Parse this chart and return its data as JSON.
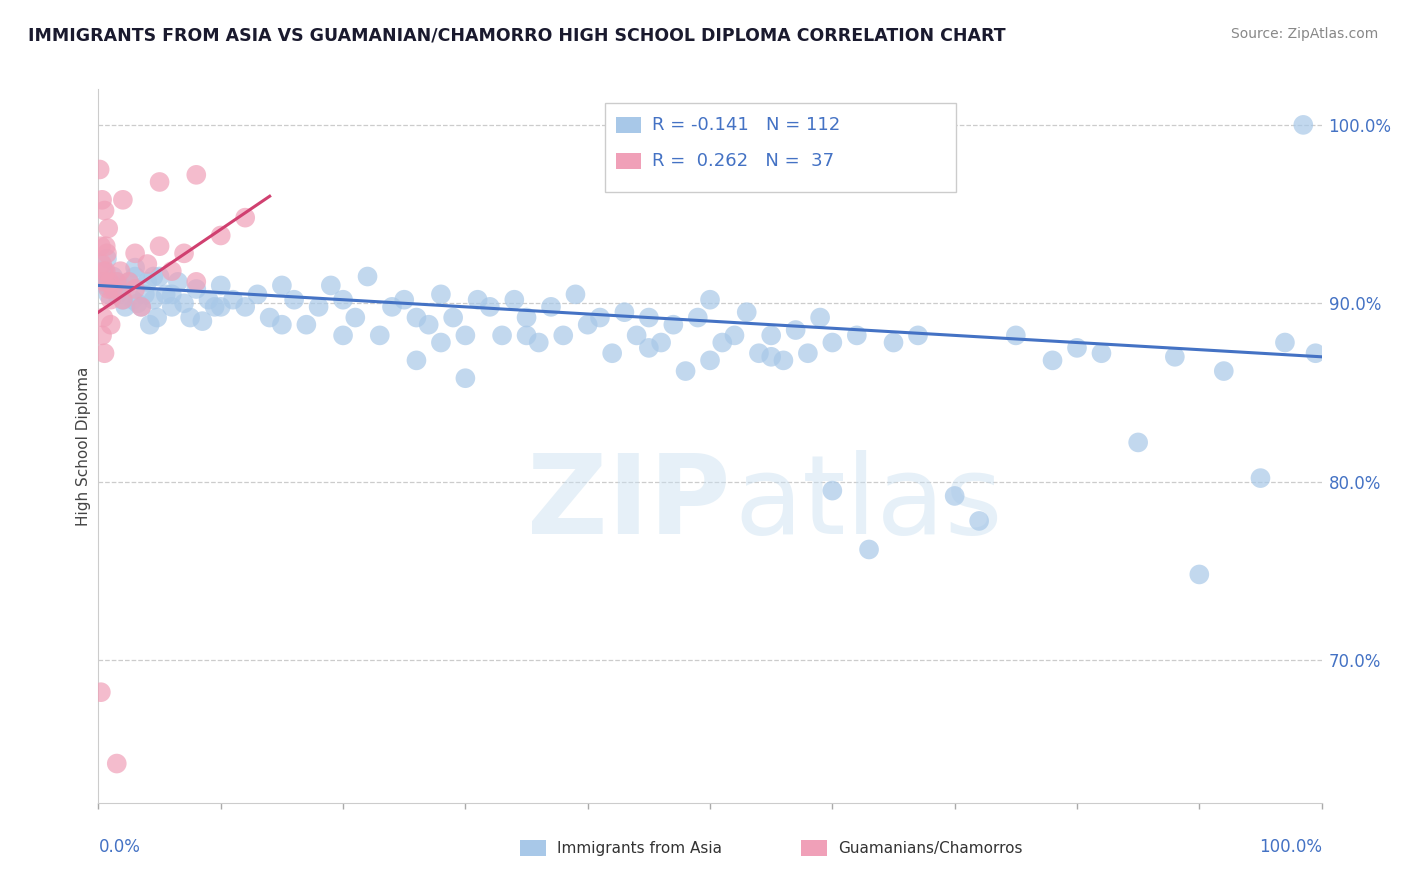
{
  "title": "IMMIGRANTS FROM ASIA VS GUAMANIAN/CHAMORRO HIGH SCHOOL DIPLOMA CORRELATION CHART",
  "source": "Source: ZipAtlas.com",
  "ylabel": "High School Diploma",
  "legend_blue_label": "Immigrants from Asia",
  "legend_pink_label": "Guamanians/Chamorros",
  "blue_color": "#a8c8e8",
  "pink_color": "#f0a0b8",
  "trend_blue": "#4472c4",
  "trend_pink": "#d04070",
  "blue_points": [
    [
      0.3,
      91.2
    ],
    [
      0.5,
      91.8
    ],
    [
      0.6,
      91.0
    ],
    [
      0.8,
      90.5
    ],
    [
      1.0,
      90.8
    ],
    [
      1.2,
      91.5
    ],
    [
      1.5,
      90.5
    ],
    [
      1.8,
      91.0
    ],
    [
      2.0,
      90.2
    ],
    [
      2.2,
      89.8
    ],
    [
      2.5,
      91.2
    ],
    [
      2.8,
      90.2
    ],
    [
      3.0,
      91.5
    ],
    [
      3.2,
      90.0
    ],
    [
      3.5,
      89.8
    ],
    [
      3.8,
      90.5
    ],
    [
      4.0,
      91.2
    ],
    [
      4.2,
      88.8
    ],
    [
      4.5,
      90.2
    ],
    [
      4.8,
      89.2
    ],
    [
      5.0,
      91.5
    ],
    [
      5.5,
      90.5
    ],
    [
      6.0,
      89.8
    ],
    [
      6.5,
      91.2
    ],
    [
      7.0,
      90.0
    ],
    [
      7.5,
      89.2
    ],
    [
      8.0,
      90.8
    ],
    [
      8.5,
      89.0
    ],
    [
      9.0,
      90.2
    ],
    [
      9.5,
      89.8
    ],
    [
      10.0,
      91.0
    ],
    [
      11.0,
      90.2
    ],
    [
      12.0,
      89.8
    ],
    [
      13.0,
      90.5
    ],
    [
      14.0,
      89.2
    ],
    [
      15.0,
      91.0
    ],
    [
      16.0,
      90.2
    ],
    [
      17.0,
      88.8
    ],
    [
      18.0,
      89.8
    ],
    [
      19.0,
      91.0
    ],
    [
      20.0,
      90.2
    ],
    [
      21.0,
      89.2
    ],
    [
      22.0,
      91.5
    ],
    [
      23.0,
      88.2
    ],
    [
      24.0,
      89.8
    ],
    [
      25.0,
      90.2
    ],
    [
      26.0,
      89.2
    ],
    [
      27.0,
      88.8
    ],
    [
      28.0,
      90.5
    ],
    [
      29.0,
      89.2
    ],
    [
      30.0,
      88.2
    ],
    [
      31.0,
      90.2
    ],
    [
      32.0,
      89.8
    ],
    [
      33.0,
      88.2
    ],
    [
      34.0,
      90.2
    ],
    [
      35.0,
      89.2
    ],
    [
      36.0,
      87.8
    ],
    [
      37.0,
      89.8
    ],
    [
      38.0,
      88.2
    ],
    [
      39.0,
      90.5
    ],
    [
      40.0,
      88.8
    ],
    [
      41.0,
      89.2
    ],
    [
      42.0,
      87.2
    ],
    [
      43.0,
      89.5
    ],
    [
      44.0,
      88.2
    ],
    [
      45.0,
      89.2
    ],
    [
      46.0,
      87.8
    ],
    [
      47.0,
      88.8
    ],
    [
      48.0,
      86.2
    ],
    [
      49.0,
      89.2
    ],
    [
      50.0,
      90.2
    ],
    [
      51.0,
      87.8
    ],
    [
      52.0,
      88.2
    ],
    [
      53.0,
      89.5
    ],
    [
      54.0,
      87.2
    ],
    [
      55.0,
      88.2
    ],
    [
      56.0,
      86.8
    ],
    [
      57.0,
      88.5
    ],
    [
      58.0,
      87.2
    ],
    [
      59.0,
      89.2
    ],
    [
      60.0,
      87.8
    ],
    [
      62.0,
      88.2
    ],
    [
      65.0,
      87.8
    ],
    [
      67.0,
      88.2
    ],
    [
      75.0,
      88.2
    ],
    [
      78.0,
      86.8
    ],
    [
      80.0,
      87.5
    ],
    [
      82.0,
      87.2
    ],
    [
      88.0,
      87.0
    ],
    [
      92.0,
      86.2
    ],
    [
      97.0,
      87.8
    ],
    [
      98.5,
      100.0
    ],
    [
      35.0,
      88.2
    ],
    [
      30.0,
      85.8
    ],
    [
      28.0,
      87.8
    ],
    [
      26.0,
      86.8
    ],
    [
      20.0,
      88.2
    ],
    [
      15.0,
      88.8
    ],
    [
      10.0,
      89.8
    ],
    [
      6.0,
      90.5
    ],
    [
      4.5,
      91.5
    ],
    [
      3.0,
      92.0
    ],
    [
      1.5,
      91.2
    ],
    [
      0.7,
      92.5
    ],
    [
      45.0,
      87.5
    ],
    [
      50.0,
      86.8
    ],
    [
      55.0,
      87.0
    ],
    [
      60.0,
      79.5
    ],
    [
      63.0,
      76.2
    ],
    [
      70.0,
      79.2
    ],
    [
      72.0,
      77.8
    ],
    [
      85.0,
      82.2
    ],
    [
      90.0,
      74.8
    ],
    [
      95.0,
      80.2
    ],
    [
      99.5,
      87.2
    ]
  ],
  "pink_points": [
    [
      0.1,
      97.5
    ],
    [
      0.3,
      95.8
    ],
    [
      0.5,
      95.2
    ],
    [
      0.2,
      93.2
    ],
    [
      0.3,
      92.2
    ],
    [
      0.4,
      91.8
    ],
    [
      0.5,
      91.2
    ],
    [
      0.6,
      91.8
    ],
    [
      0.7,
      92.8
    ],
    [
      0.8,
      90.8
    ],
    [
      0.9,
      91.2
    ],
    [
      1.0,
      90.2
    ],
    [
      1.2,
      90.8
    ],
    [
      1.5,
      91.2
    ],
    [
      1.8,
      91.8
    ],
    [
      2.0,
      90.2
    ],
    [
      2.5,
      91.2
    ],
    [
      3.0,
      90.8
    ],
    [
      3.5,
      89.8
    ],
    [
      4.0,
      92.2
    ],
    [
      5.0,
      93.2
    ],
    [
      6.0,
      91.8
    ],
    [
      7.0,
      92.8
    ],
    [
      8.0,
      91.2
    ],
    [
      10.0,
      93.8
    ],
    [
      12.0,
      94.8
    ],
    [
      0.4,
      89.2
    ],
    [
      0.3,
      88.2
    ],
    [
      0.5,
      87.2
    ],
    [
      0.6,
      93.2
    ],
    [
      0.8,
      94.2
    ],
    [
      1.0,
      88.8
    ],
    [
      2.0,
      95.8
    ],
    [
      3.0,
      92.8
    ],
    [
      0.2,
      68.2
    ],
    [
      1.5,
      64.2
    ],
    [
      5.0,
      96.8
    ],
    [
      8.0,
      97.2
    ]
  ],
  "xlim": [
    0,
    100
  ],
  "ylim": [
    62,
    102
  ],
  "blue_trend_x": [
    0,
    100
  ],
  "blue_trend_y": [
    91.0,
    87.0
  ],
  "pink_trend_x": [
    0,
    14
  ],
  "pink_trend_y": [
    89.5,
    96.0
  ]
}
